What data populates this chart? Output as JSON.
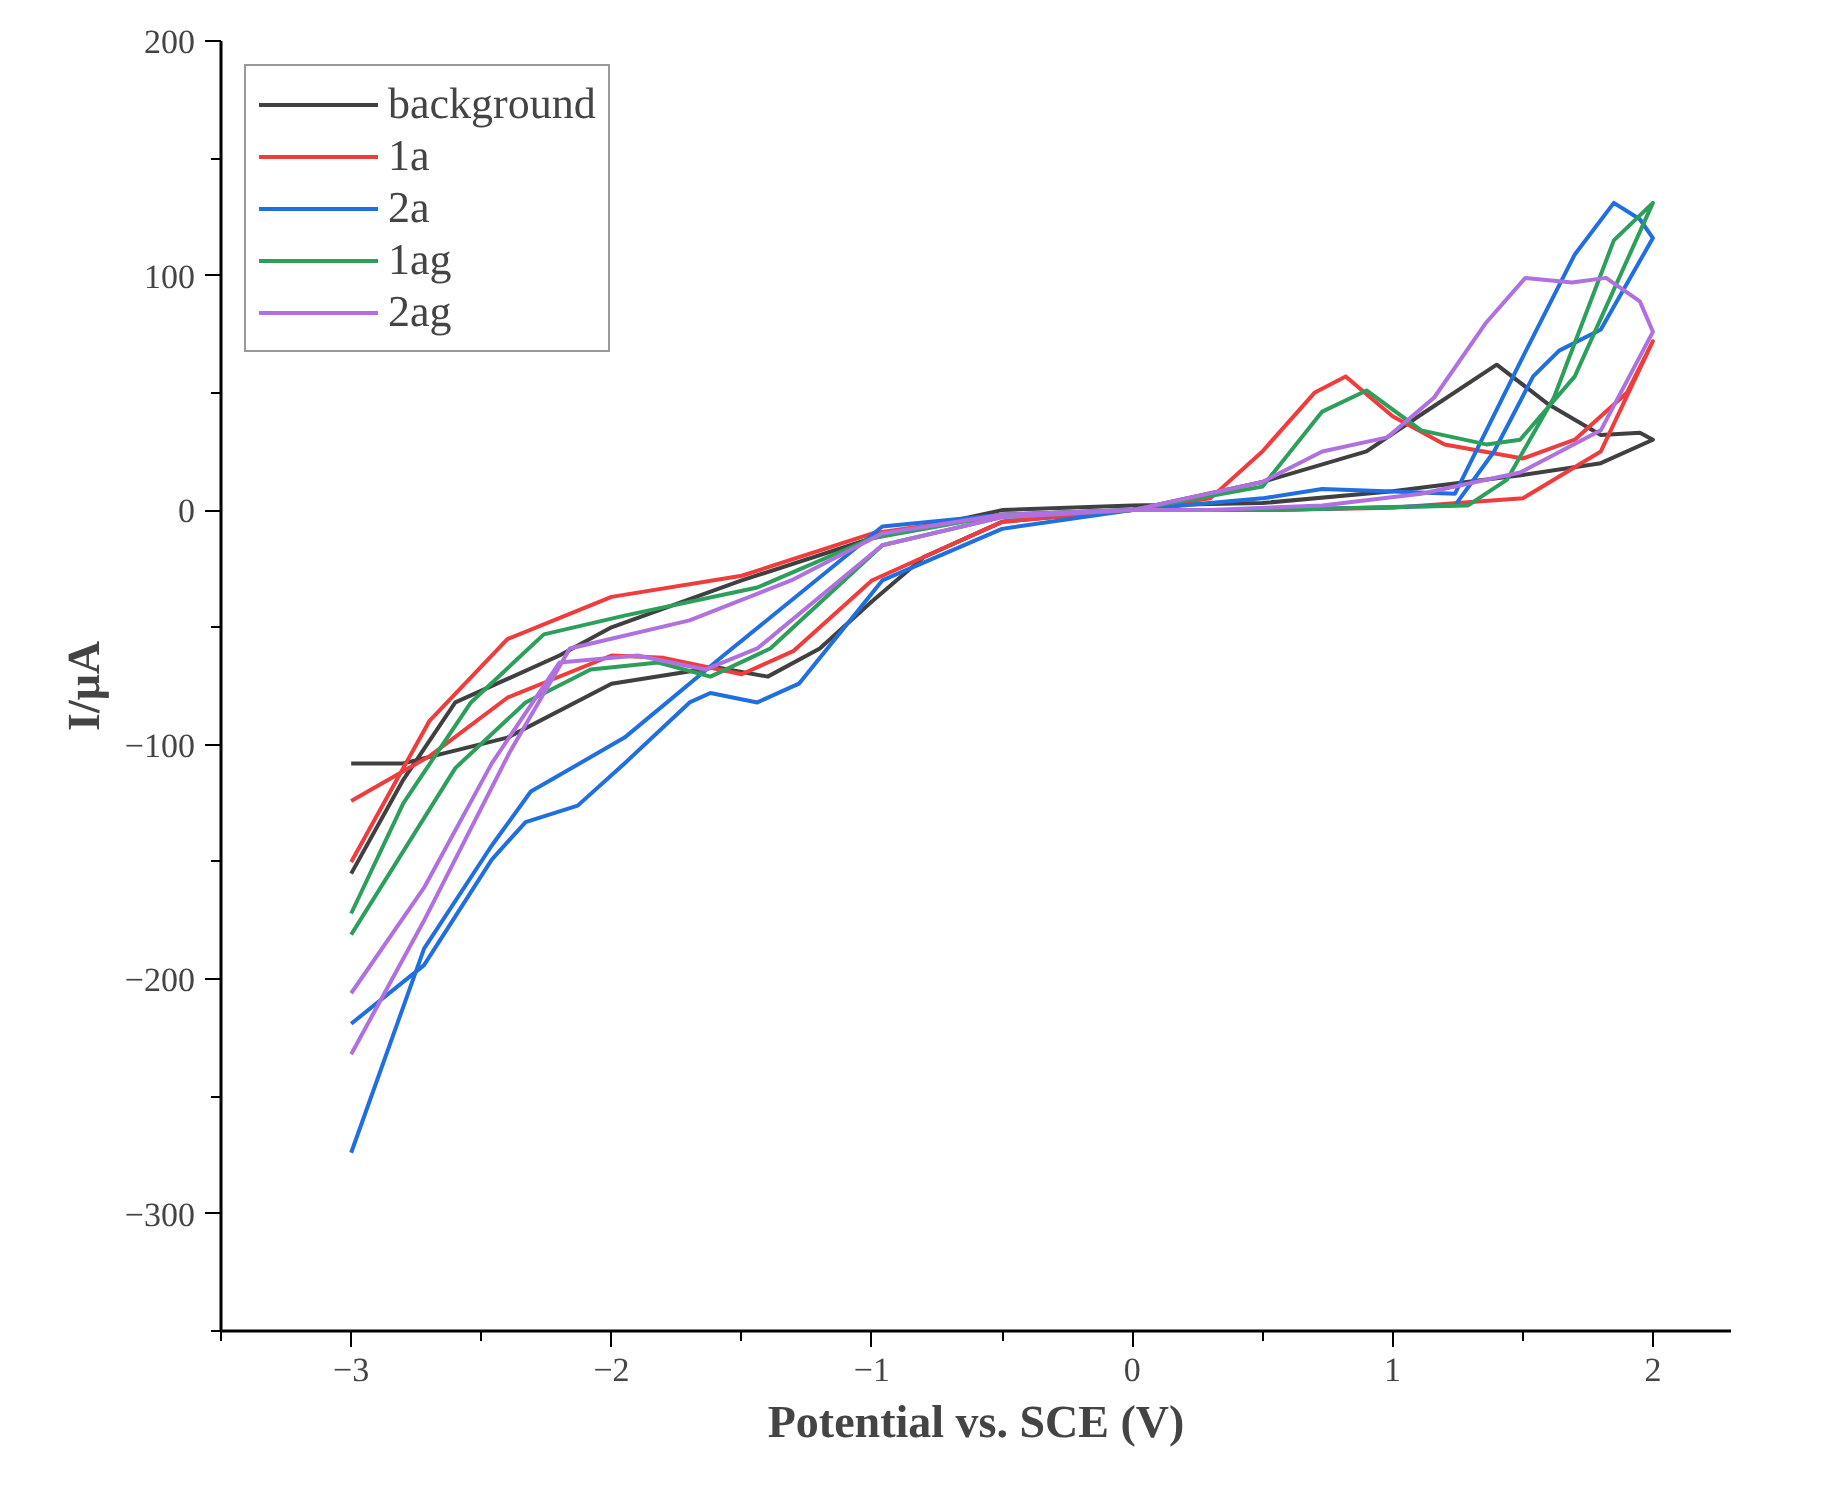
{
  "chart_data": {
    "type": "line",
    "xlabel": "Potential vs. SCE (V)",
    "ylabel": "I/μA",
    "xlim": [
      -3.5,
      2.3
    ],
    "ylim": [
      -350,
      200
    ],
    "xticks": [
      -3,
      -2,
      -1,
      0,
      1,
      2
    ],
    "yticks": [
      -300,
      -200,
      -100,
      0,
      100,
      200
    ],
    "grid": false,
    "legend": "top left",
    "marker": "none",
    "line_style": "solid",
    "series": [
      {
        "name": "background",
        "color": "#404040",
        "x": [
          -3,
          -2.8,
          -2.4,
          -2.0,
          -1.6,
          -1.4,
          -1.2,
          -1.0,
          -0.8,
          -0.5,
          0,
          0.5,
          0.9,
          1.1,
          1.4,
          1.6,
          1.8,
          1.95,
          2.0,
          1.8,
          1.5,
          1.0,
          0.5,
          0,
          -0.5,
          -1.0,
          -1.5,
          -2.0,
          -2.2,
          -2.6,
          -2.8,
          -3
        ],
        "values": [
          -108,
          -108,
          -97,
          -74,
          -67,
          -71,
          -59,
          -39,
          -20,
          -5,
          0,
          12,
          25,
          40,
          62,
          45,
          32,
          33,
          30,
          20,
          15,
          8,
          3,
          2,
          0,
          -12,
          -30,
          -50,
          -62,
          -82,
          -115,
          -155
        ]
      },
      {
        "name": "1a",
        "color": "#f03c3c",
        "x": [
          -3,
          -2.7,
          -2.4,
          -2.0,
          -1.8,
          -1.5,
          -1.3,
          -1.0,
          -0.5,
          0,
          0.3,
          0.5,
          0.7,
          0.82,
          1.0,
          1.2,
          1.5,
          1.7,
          1.9,
          2.0,
          1.8,
          1.5,
          1.0,
          0.5,
          0,
          -0.5,
          -1.0,
          -1.5,
          -2.0,
          -2.4,
          -2.7,
          -3
        ],
        "values": [
          -124,
          -105,
          -80,
          -62,
          -63,
          -70,
          -60,
          -30,
          -5,
          0,
          5,
          25,
          50,
          57,
          40,
          28,
          22,
          30,
          50,
          72,
          25,
          5,
          1,
          0,
          0,
          -2,
          -10,
          -28,
          -37,
          -55,
          -90,
          -150
        ]
      },
      {
        "name": "2a",
        "color": "#1f6fe0",
        "x": [
          -3,
          -2.72,
          -2.46,
          -2.33,
          -2.13,
          -1.95,
          -1.7,
          -1.62,
          -1.44,
          -1.28,
          -0.96,
          -0.5,
          0,
          0.5,
          0.73,
          1.24,
          1.49,
          1.7,
          1.85,
          1.95,
          2.0,
          1.8,
          1.64,
          1.54,
          1.39,
          1.24,
          0.5,
          0,
          -0.5,
          -0.96,
          -1.57,
          -1.95,
          -2.31,
          -2.46,
          -2.72,
          -3
        ],
        "values": [
          -219,
          -194,
          -149,
          -133,
          -126,
          -108,
          -82,
          -78,
          -82,
          -74,
          -30,
          -8,
          0,
          5,
          9,
          7,
          63,
          109,
          131,
          124,
          116,
          77,
          68,
          57,
          25,
          2,
          0,
          0,
          -2,
          -7,
          -62,
          -97,
          -120,
          -143,
          -187,
          -274
        ]
      },
      {
        "name": "1ag",
        "color": "#2ca05a",
        "x": [
          -3,
          -2.6,
          -2.33,
          -2.08,
          -1.82,
          -1.62,
          -1.39,
          -0.96,
          -0.5,
          0,
          0.5,
          0.73,
          0.9,
          1.11,
          1.36,
          1.49,
          1.7,
          2.0,
          1.85,
          1.62,
          1.44,
          1.29,
          0.5,
          0,
          -0.5,
          -1.0,
          -1.44,
          -1.95,
          -2.26,
          -2.54,
          -2.8,
          -3
        ],
        "values": [
          -181,
          -110,
          -82,
          -68,
          -65,
          -71,
          -59,
          -15,
          -3,
          0,
          10,
          42,
          51,
          34,
          28,
          30,
          57,
          131,
          115,
          48,
          13,
          2,
          0,
          0,
          -2,
          -12,
          -33,
          -45,
          -53,
          -82,
          -125,
          -172
        ]
      },
      {
        "name": "2ag",
        "color": "#b070e0",
        "x": [
          -3,
          -2.72,
          -2.46,
          -2.2,
          -1.9,
          -1.64,
          -1.44,
          -0.96,
          -0.5,
          0,
          0.5,
          0.73,
          0.98,
          1.16,
          1.36,
          1.51,
          1.69,
          1.82,
          1.95,
          2.0,
          1.8,
          1.49,
          1.11,
          0.73,
          0.3,
          0,
          -0.5,
          -0.96,
          -1.31,
          -1.7,
          -2.16,
          -2.39,
          -2.72,
          -3
        ],
        "values": [
          -206,
          -161,
          -108,
          -65,
          -62,
          -68,
          -59,
          -15,
          -3,
          0,
          12,
          25,
          31,
          48,
          80,
          99,
          97,
          99,
          89,
          76,
          34,
          16,
          7,
          2,
          0,
          0,
          -2,
          -10,
          -30,
          -47,
          -59,
          -103,
          -175,
          -232
        ]
      }
    ]
  }
}
